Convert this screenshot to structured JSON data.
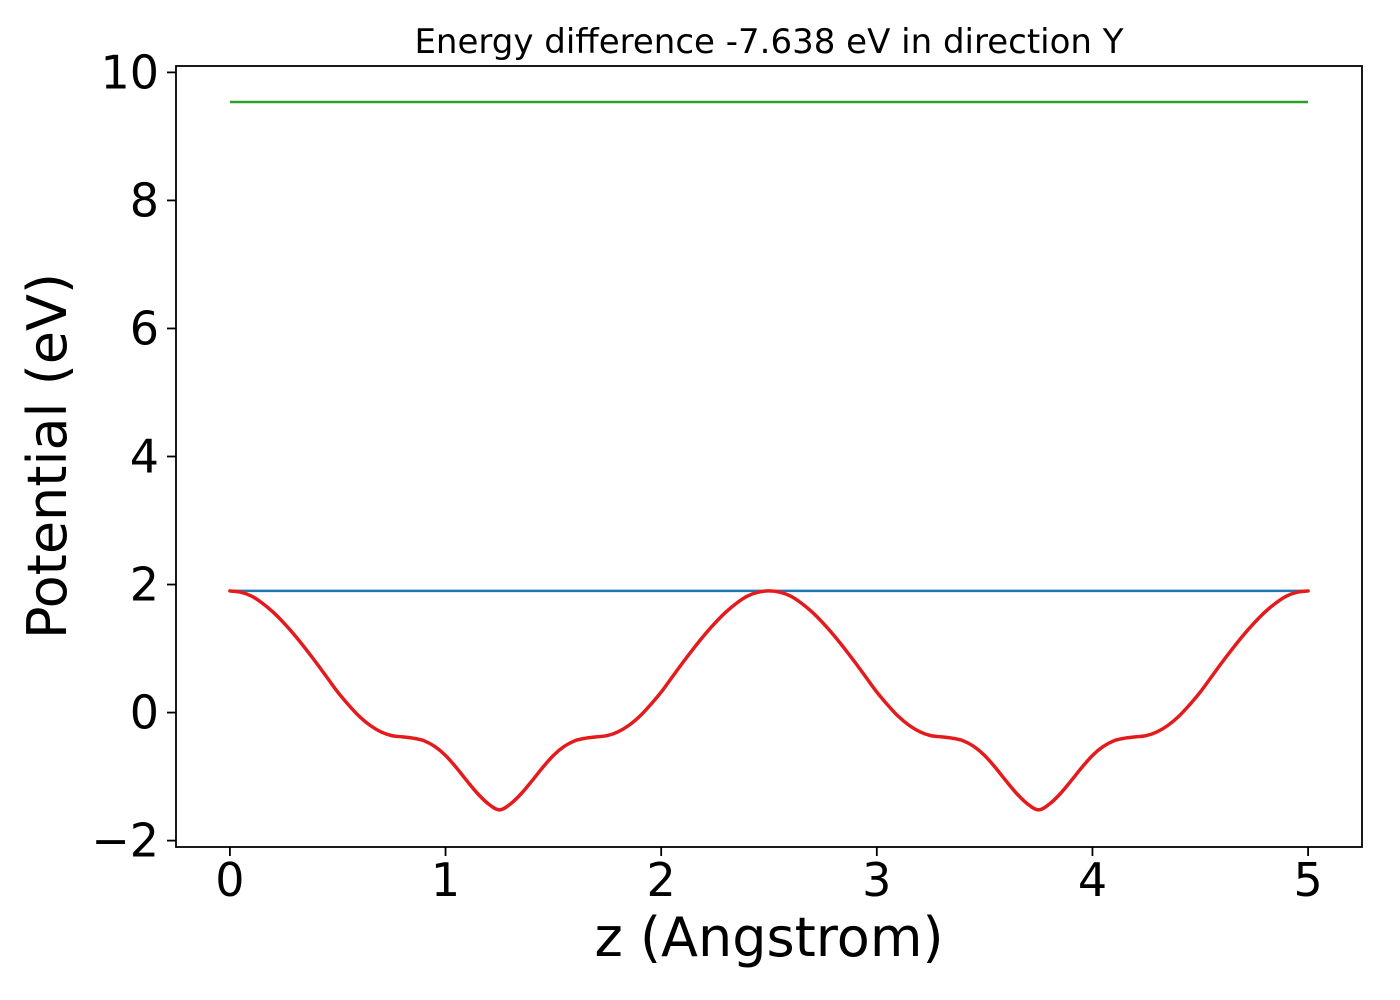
{
  "figure": {
    "background": "#ffffff",
    "spine_color": "#000000",
    "tick_color": "#000000"
  },
  "chart_data": {
    "type": "line",
    "title": "Energy difference -7.638 eV in direction Y",
    "xlabel": "z (Angstrom)",
    "ylabel": "Potential (eV)",
    "xlim": [
      -0.25,
      5.25
    ],
    "ylim": [
      -2.1,
      10.1
    ],
    "grid": false,
    "legend": null,
    "x_ticks": {
      "values": [
        0,
        1,
        2,
        3,
        4,
        5
      ],
      "labels": [
        "0",
        "1",
        "2",
        "3",
        "4",
        "5"
      ]
    },
    "y_ticks": {
      "values": [
        -2,
        0,
        2,
        4,
        6,
        8,
        10
      ],
      "labels": [
        "−2",
        "0",
        "2",
        "4",
        "6",
        "8",
        "10"
      ]
    },
    "series": [
      {
        "name": "vacuum_level_line",
        "type": "hline",
        "color": "#2ca02c",
        "width": 2.5,
        "x": [
          0,
          5
        ],
        "y_value": 9.538
      },
      {
        "name": "reference_level_line",
        "type": "hline",
        "color": "#1f77b4",
        "width": 2.5,
        "x": [
          0,
          5
        ],
        "y_value": 1.9
      },
      {
        "name": "planar_potential_curve",
        "type": "curve",
        "color": "#e41a1c",
        "width": 3.5,
        "x_start": 0,
        "x_step": 0.05,
        "y": [
          1.9,
          1.88,
          1.82,
          1.71,
          1.57,
          1.4,
          1.21,
          1.0,
          0.78,
          0.55,
          0.32,
          0.12,
          -0.06,
          -0.2,
          -0.3,
          -0.36,
          -0.38,
          -0.4,
          -0.44,
          -0.53,
          -0.67,
          -0.86,
          -1.07,
          -1.27,
          -1.43,
          -1.52,
          -1.43,
          -1.27,
          -1.07,
          -0.86,
          -0.67,
          -0.53,
          -0.44,
          -0.4,
          -0.38,
          -0.36,
          -0.3,
          -0.2,
          -0.06,
          0.12,
          0.32,
          0.55,
          0.78,
          1.0,
          1.21,
          1.4,
          1.57,
          1.71,
          1.82,
          1.88,
          1.9,
          1.88,
          1.82,
          1.71,
          1.57,
          1.4,
          1.21,
          1.0,
          0.78,
          0.55,
          0.32,
          0.12,
          -0.06,
          -0.2,
          -0.3,
          -0.36,
          -0.38,
          -0.4,
          -0.44,
          -0.53,
          -0.67,
          -0.86,
          -1.07,
          -1.27,
          -1.43,
          -1.52,
          -1.43,
          -1.27,
          -1.07,
          -0.86,
          -0.67,
          -0.53,
          -0.44,
          -0.4,
          -0.38,
          -0.36,
          -0.3,
          -0.2,
          -0.06,
          0.12,
          0.32,
          0.55,
          0.78,
          1.0,
          1.21,
          1.4,
          1.57,
          1.71,
          1.82,
          1.88,
          1.9
        ]
      }
    ]
  }
}
